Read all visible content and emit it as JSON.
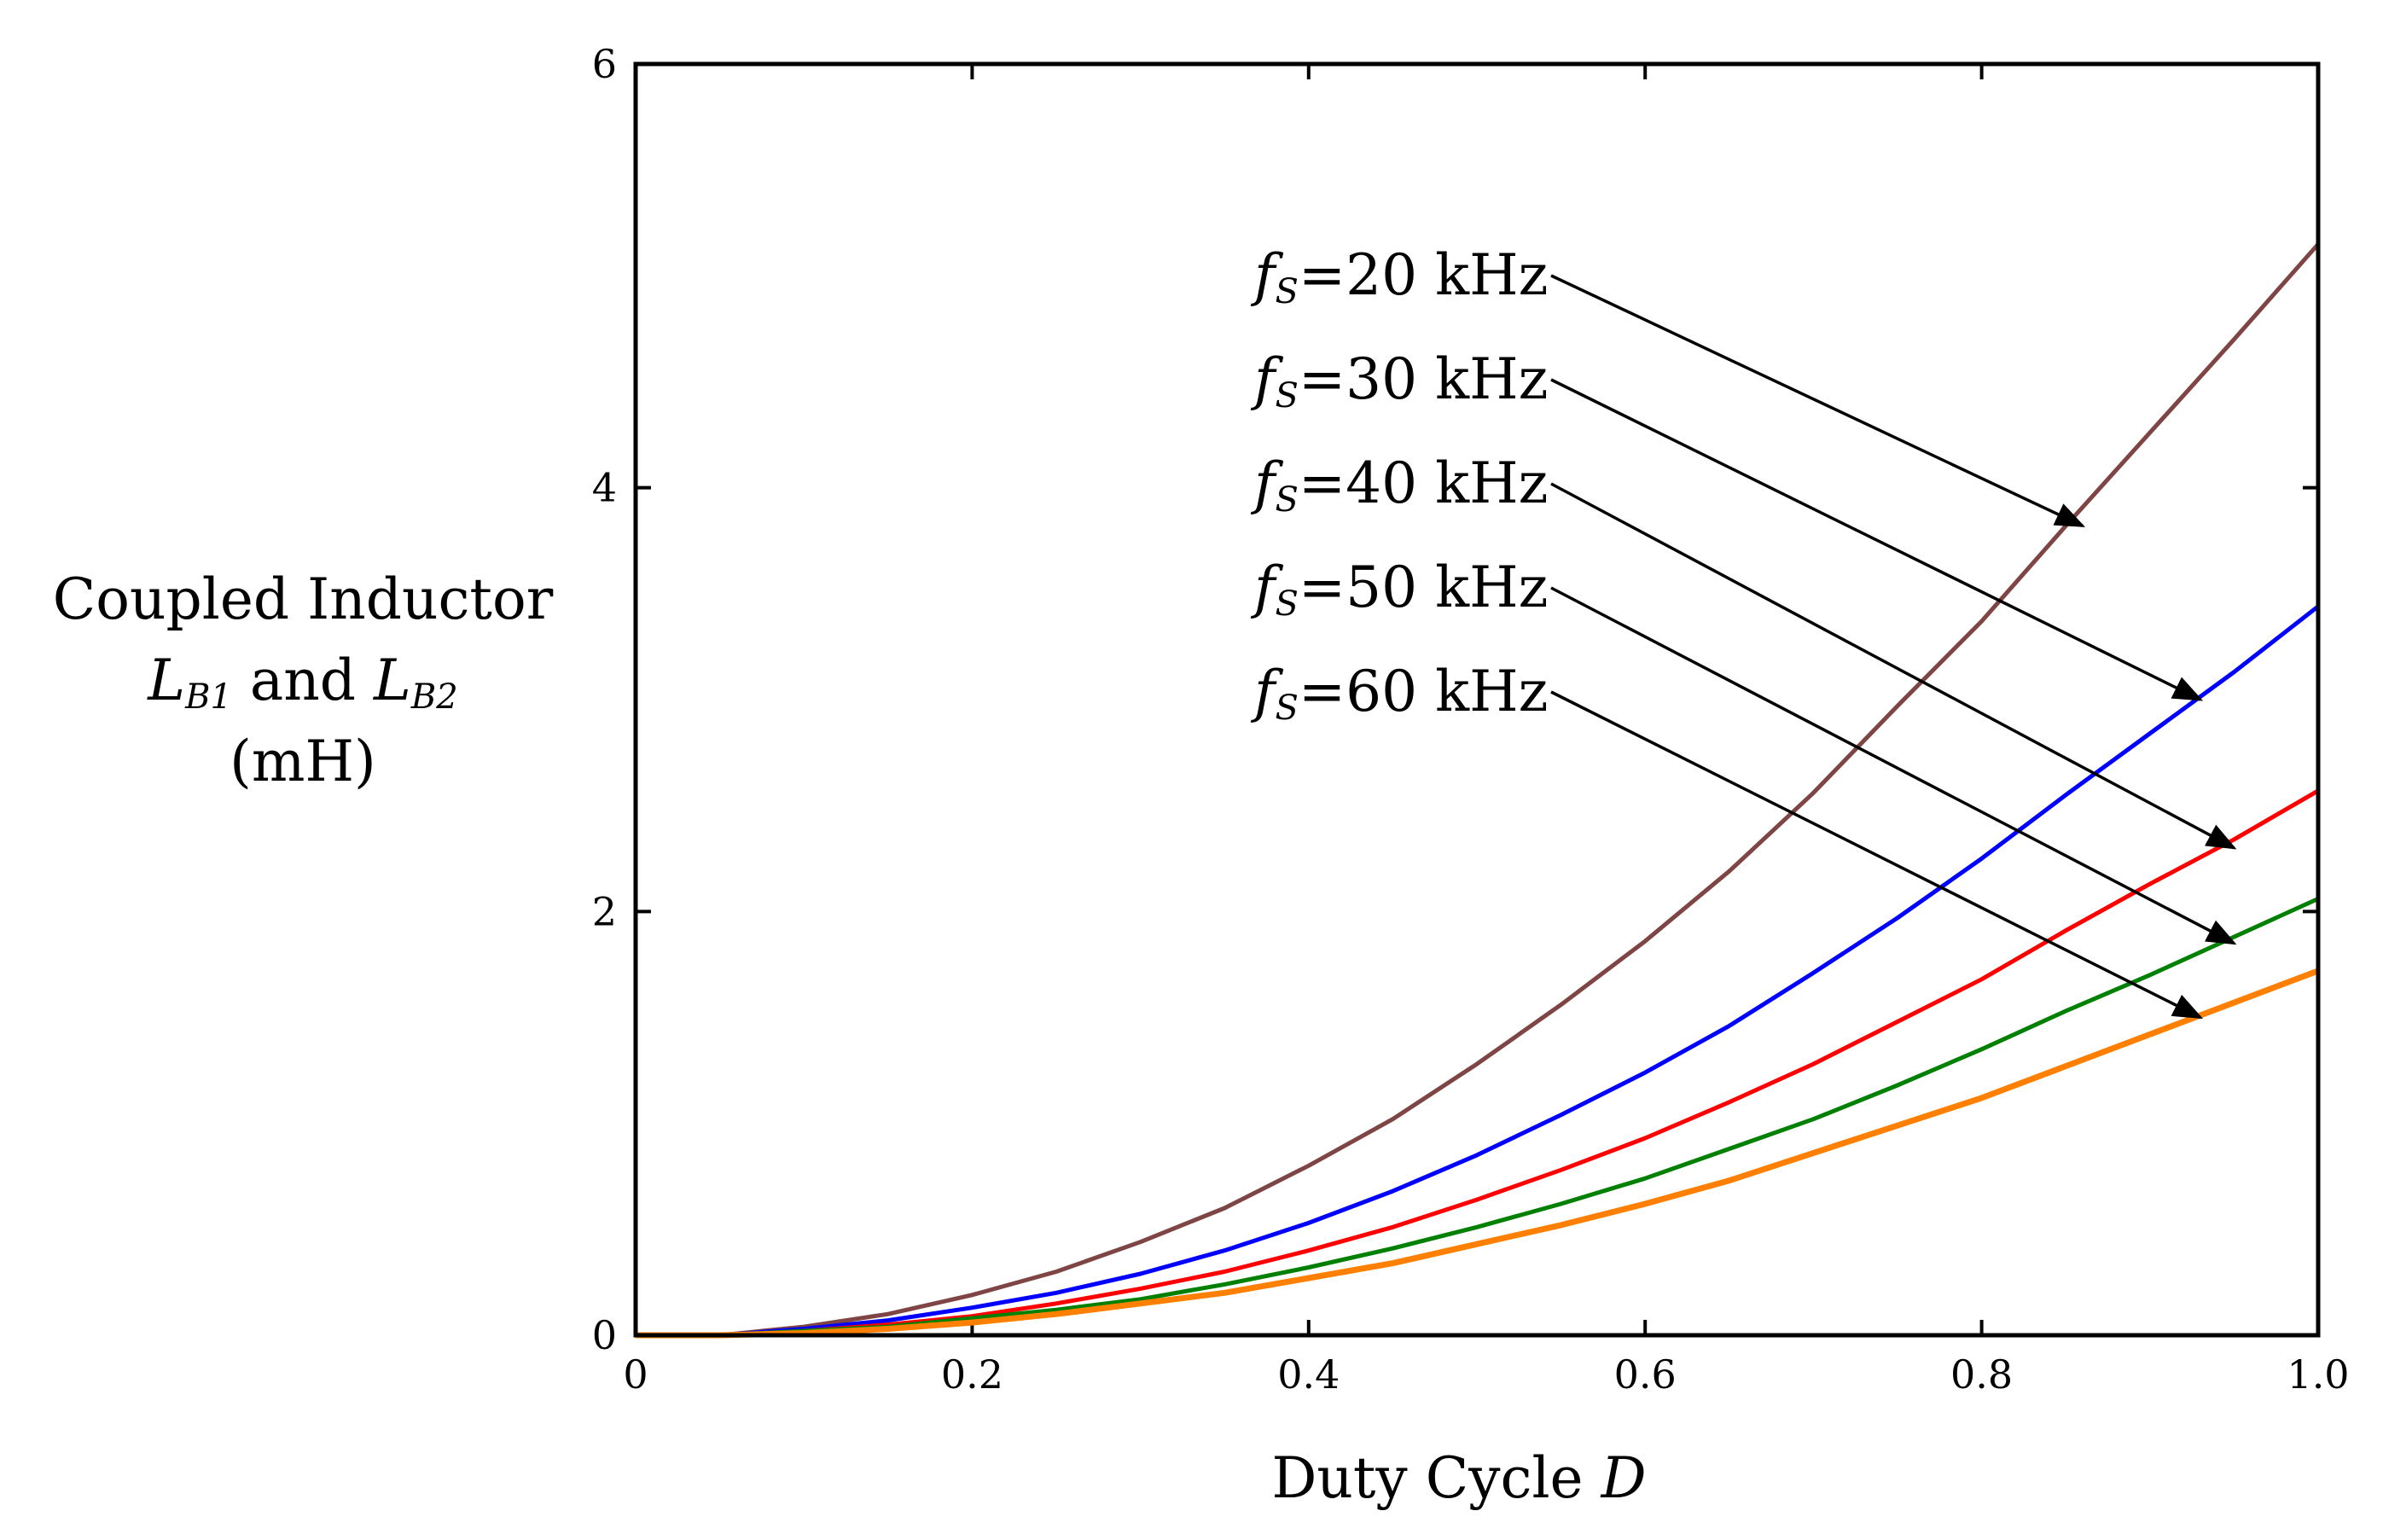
{
  "chart_data": {
    "type": "line",
    "title": "",
    "xlabel": {
      "prefix": "Duty Cycle ",
      "variable": "D"
    },
    "ylabel": {
      "line1": "Coupled Inductor",
      "line2": {
        "var1": "L",
        "sub1": "B1",
        "mid": " and ",
        "var2": "L",
        "sub2": "B2"
      },
      "line3": "(mH)"
    },
    "xlim": [
      0,
      1.0
    ],
    "ylim": [
      0,
      6
    ],
    "x_ticks": [
      0,
      0.2,
      0.4,
      0.6,
      0.8,
      1.0
    ],
    "x_tick_labels": [
      "0",
      "0.2",
      "0.4",
      "0.6",
      "0.8",
      "1.0"
    ],
    "y_ticks": [
      0,
      2,
      4,
      6
    ],
    "y_tick_labels": [
      "0",
      "2",
      "4",
      "6"
    ],
    "grid": false,
    "x": [
      0,
      0.05,
      0.1,
      0.15,
      0.2,
      0.25,
      0.3,
      0.35,
      0.4,
      0.45,
      0.5,
      0.55,
      0.6,
      0.65,
      0.7,
      0.75,
      0.8,
      0.85,
      0.9,
      0.95,
      1.0
    ],
    "series": [
      {
        "name": "fS=20 kHz",
        "label_var": "f",
        "label_sub": "S",
        "label_rest": "=20 kHz",
        "color": "#7f4545",
        "values": [
          0,
          0.0,
          0.04,
          0.1,
          0.19,
          0.3,
          0.44,
          0.6,
          0.8,
          1.02,
          1.28,
          1.56,
          1.86,
          2.19,
          2.56,
          2.97,
          3.37,
          3.82,
          4.26,
          4.7,
          5.15
        ],
        "arrow_tip": [
          0.86,
          3.82
        ]
      },
      {
        "name": "fS=30 kHz",
        "label_var": "f",
        "label_sub": "S",
        "label_rest": "=30 kHz",
        "color": "#0000ff",
        "values": [
          0,
          0.0,
          0.03,
          0.07,
          0.13,
          0.2,
          0.29,
          0.4,
          0.53,
          0.68,
          0.85,
          1.04,
          1.24,
          1.46,
          1.71,
          1.97,
          2.25,
          2.55,
          2.84,
          3.13,
          3.44
        ],
        "arrow_tip": [
          0.93,
          3.0
        ]
      },
      {
        "name": "fS=40 kHz",
        "label_var": "f",
        "label_sub": "S",
        "label_rest": "=40 kHz",
        "color": "#ff0000",
        "values": [
          0,
          0.0,
          0.02,
          0.05,
          0.09,
          0.15,
          0.22,
          0.3,
          0.4,
          0.51,
          0.64,
          0.78,
          0.93,
          1.1,
          1.28,
          1.48,
          1.68,
          1.91,
          2.13,
          2.34,
          2.57
        ],
        "arrow_tip": [
          0.95,
          2.3
        ]
      },
      {
        "name": "fS=50 kHz",
        "label_var": "f",
        "label_sub": "S",
        "label_rest": "=50 kHz",
        "color": "#008000",
        "values": [
          0,
          0.0,
          0.02,
          0.04,
          0.08,
          0.12,
          0.17,
          0.24,
          0.32,
          0.41,
          0.51,
          0.62,
          0.74,
          0.88,
          1.02,
          1.18,
          1.35,
          1.53,
          1.7,
          1.88,
          2.06
        ],
        "arrow_tip": [
          0.95,
          1.85
        ]
      },
      {
        "name": "fS=60 kHz",
        "label_var": "f",
        "label_sub": "S",
        "label_rest": "=60 kHz",
        "color": "#ff8000",
        "values": [
          0,
          0.0,
          0.01,
          0.03,
          0.06,
          0.1,
          0.15,
          0.2,
          0.27,
          0.34,
          0.43,
          0.52,
          0.62,
          0.73,
          0.86,
          0.99,
          1.12,
          1.27,
          1.42,
          1.57,
          1.72
        ],
        "arrow_tip": [
          0.93,
          1.5
        ]
      }
    ]
  }
}
